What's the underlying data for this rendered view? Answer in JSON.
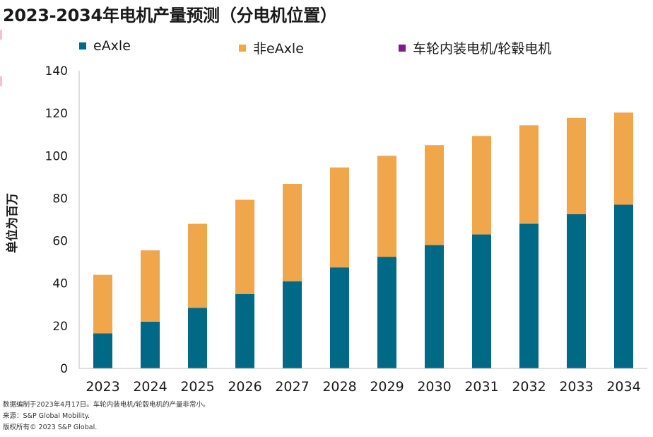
{
  "title": "2023-2034年电机产量预测（分电机位置）",
  "colors": {
    "eaxle": "#006986",
    "non_eaxle": "#f0a64b",
    "wheel": "#7a1f8a",
    "axis": "#bfbfbf"
  },
  "legend": [
    {
      "label": "eAxle",
      "color": "#006986"
    },
    {
      "label": "非eAxle",
      "color": "#f0a64b"
    },
    {
      "label": "车轮内装电机/轮毂电机",
      "color": "#7a1f8a"
    }
  ],
  "chart_data": {
    "type": "bar",
    "stacked": true,
    "ylabel": "单位为百万",
    "ylim": [
      0,
      140
    ],
    "yticks": [
      0,
      20,
      40,
      60,
      80,
      100,
      120,
      140
    ],
    "categories": [
      "2023",
      "2024",
      "2025",
      "2026",
      "2027",
      "2028",
      "2029",
      "2030",
      "2031",
      "2032",
      "2033",
      "2034"
    ],
    "series": [
      {
        "name": "eAxle",
        "values": [
          16.5,
          22,
          28.5,
          35,
          41,
          47.5,
          52.5,
          58,
          63,
          68,
          72.5,
          77
        ]
      },
      {
        "name": "非eAxle",
        "values": [
          27.5,
          33.5,
          39.5,
          44.3,
          45.8,
          47,
          47.5,
          47,
          46.3,
          46.3,
          45.3,
          43.3
        ]
      },
      {
        "name": "车轮内装电机/轮毂电机",
        "values": [
          0,
          0,
          0,
          0,
          0,
          0,
          0,
          0,
          0,
          0,
          0,
          0
        ]
      }
    ],
    "grid": false,
    "legend_position": "top"
  },
  "footnotes": [
    "数据编制于2023年4月17日。车轮内装电机/轮毂电机的产量非常小。",
    "来源：S&P Global Mobility.",
    "版权所有© 2023 S&P Global."
  ]
}
